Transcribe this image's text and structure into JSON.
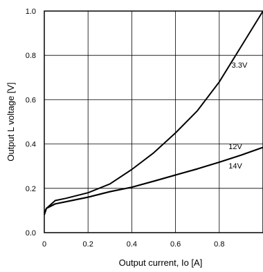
{
  "chart_data": {
    "type": "line",
    "xlabel": "Output current, Io [A]",
    "ylabel": "Output L voltage [V]",
    "xlim": [
      0,
      1.0
    ],
    "ylim": [
      0,
      1.0
    ],
    "grid": true,
    "x_ticks": [
      {
        "value": 0.0,
        "label": "0"
      },
      {
        "value": 0.2,
        "label": "0.2"
      },
      {
        "value": 0.4,
        "label": "0.4"
      },
      {
        "value": 0.6,
        "label": "0.6"
      },
      {
        "value": 0.8,
        "label": "0.8"
      }
    ],
    "y_ticks": [
      {
        "value": 0.0,
        "label": "0.0"
      },
      {
        "value": 0.2,
        "label": "0.2"
      },
      {
        "value": 0.4,
        "label": "0.4"
      },
      {
        "value": 0.6,
        "label": "0.6"
      },
      {
        "value": 0.8,
        "label": "0.8"
      },
      {
        "value": 1.0,
        "label": "1.0"
      }
    ],
    "series": [
      {
        "name": "3.3V",
        "x": [
          0.0,
          0.01,
          0.05,
          0.1,
          0.2,
          0.3,
          0.4,
          0.5,
          0.6,
          0.7,
          0.8,
          0.9,
          1.0
        ],
        "y": [
          0.08,
          0.11,
          0.145,
          0.155,
          0.18,
          0.22,
          0.285,
          0.36,
          0.45,
          0.55,
          0.68,
          0.84,
          1.0
        ]
      },
      {
        "name": "12V",
        "x": [
          0.0,
          0.01,
          0.05,
          0.1,
          0.2,
          0.3,
          0.4,
          0.5,
          0.6,
          0.7,
          0.8,
          0.9,
          1.0
        ],
        "y": [
          0.09,
          0.11,
          0.13,
          0.14,
          0.16,
          0.185,
          0.205,
          0.232,
          0.26,
          0.288,
          0.318,
          0.35,
          0.385
        ]
      },
      {
        "name": "14V",
        "x": [
          0.0,
          0.01,
          0.05,
          0.1,
          0.2,
          0.3,
          0.4,
          0.5,
          0.6,
          0.7,
          0.8,
          0.9,
          1.0
        ],
        "y": [
          0.09,
          0.11,
          0.13,
          0.14,
          0.16,
          0.185,
          0.205,
          0.232,
          0.26,
          0.288,
          0.318,
          0.35,
          0.385
        ]
      }
    ]
  }
}
